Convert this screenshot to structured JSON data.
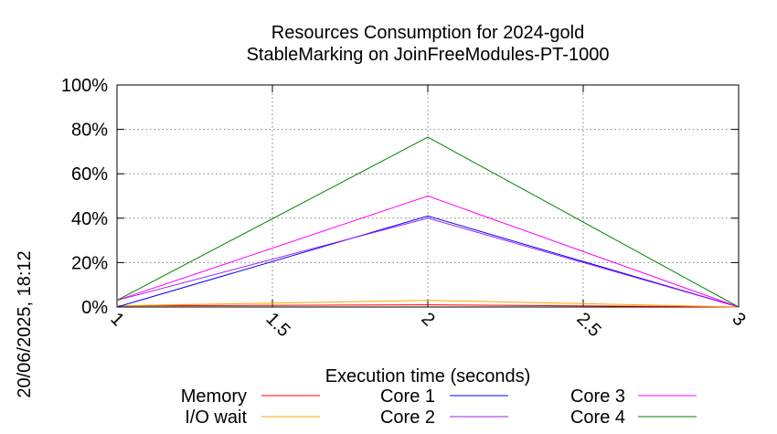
{
  "chart_data": {
    "type": "line",
    "title": [
      "Resources Consumption for 2024-gold",
      "StableMarking on JoinFreeModules-PT-1000"
    ],
    "xlabel": "Execution time (seconds)",
    "ylabel": "",
    "side_label": "20/06/2025, 18:12",
    "xlim": [
      1,
      3
    ],
    "ylim": [
      0,
      100
    ],
    "x_ticks": [
      1,
      1.5,
      2,
      2.5,
      3
    ],
    "x_tick_labels": [
      "1",
      "1.5",
      "2",
      "2.5",
      "3"
    ],
    "y_ticks": [
      0,
      20,
      40,
      60,
      80,
      100
    ],
    "y_tick_labels": [
      "0%",
      "20%",
      "40%",
      "60%",
      "80%",
      "100%"
    ],
    "grid": true,
    "legend_position": "bottom",
    "x": [
      1,
      2,
      3
    ],
    "series": [
      {
        "name": "Memory",
        "color": "#ff0000",
        "values": [
          0.5,
          1,
          0
        ]
      },
      {
        "name": "I/O wait",
        "color": "#ffa500",
        "values": [
          0.5,
          3,
          0
        ]
      },
      {
        "name": "Core 1",
        "color": "#0000ff",
        "values": [
          0,
          41,
          0
        ]
      },
      {
        "name": "Core 2",
        "color": "#a020f0",
        "values": [
          3,
          40,
          0
        ]
      },
      {
        "name": "Core 3",
        "color": "#ff00ff",
        "values": [
          3,
          50,
          0
        ]
      },
      {
        "name": "Core 4",
        "color": "#008000",
        "values": [
          3,
          76.5,
          0
        ]
      }
    ]
  }
}
